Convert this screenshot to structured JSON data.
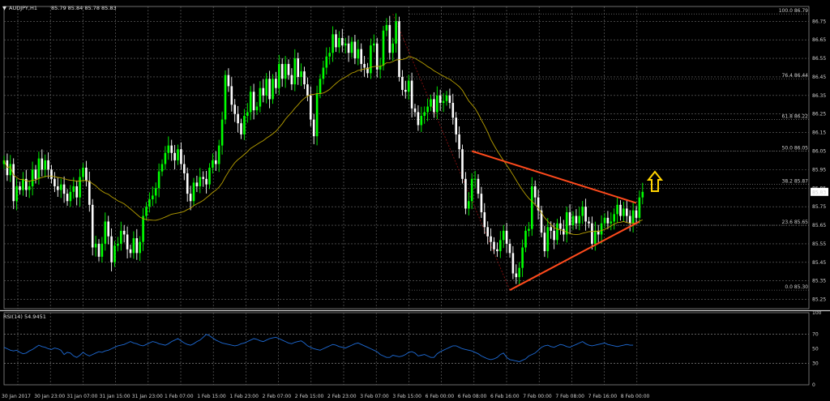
{
  "header": {
    "symbol_title": "AUDJPY,H1",
    "ohlc": "85.79 85.84 85.78 85.83",
    "rsi_title": "RSI(14) 54.9451"
  },
  "colors": {
    "background": "#000000",
    "grid": "#6e6e6e",
    "bull": "#00ff00",
    "bear": "#ffffff",
    "ma": "#b8a000",
    "trendline": "#ff4a1c",
    "fib": "#8a1010",
    "rsi": "#1e6bd6",
    "arrow": "#ffd400"
  },
  "chart_data": {
    "type": "candlestick",
    "symbol": "AUDJPY",
    "timeframe": "H1",
    "last_price": "85.83",
    "price_axis_ticks": [
      "86.75",
      "86.65",
      "86.55",
      "86.45",
      "86.35",
      "86.25",
      "86.15",
      "86.05",
      "85.95",
      "85.85",
      "85.75",
      "85.65",
      "85.55",
      "85.45",
      "85.35",
      "85.25"
    ],
    "ylim": [
      85.2,
      86.83
    ],
    "time_labels": [
      "30 Jan 2017",
      "30 Jan 23:00",
      "31 Jan 07:00",
      "31 Jan 15:00",
      "31 Jan 23:00",
      "1 Feb 07:00",
      "1 Feb 15:00",
      "1 Feb 23:00",
      "2 Feb 07:00",
      "2 Feb 15:00",
      "2 Feb 23:00",
      "3 Feb 07:00",
      "3 Feb 15:00",
      "6 Feb 00:00",
      "6 Feb 08:00",
      "6 Feb 16:00",
      "7 Feb 00:00",
      "7 Feb 08:00",
      "7 Feb 16:00",
      "8 Feb 00:00"
    ],
    "fibonacci": {
      "levels": [
        {
          "label": "100.0 86.79",
          "price": 86.79
        },
        {
          "label": "76.4 86.44",
          "price": 86.44
        },
        {
          "label": "61.8 86.22",
          "price": 86.22
        },
        {
          "label": "50.0 86.05",
          "price": 86.05
        },
        {
          "label": "38.2 85.87",
          "price": 85.87
        },
        {
          "label": "23.6 85.65",
          "price": 85.65
        },
        {
          "label": "0.0 85.30",
          "price": 85.3
        }
      ]
    },
    "triangle": {
      "upper": [
        {
          "bar": 148,
          "price": 86.05
        },
        {
          "bar": 200,
          "price": 85.77
        }
      ],
      "lower": [
        {
          "bar": 160,
          "price": 85.3
        },
        {
          "bar": 201,
          "price": 85.67
        }
      ]
    },
    "closes": [
      86.0,
      85.92,
      85.98,
      85.78,
      85.86,
      85.84,
      85.9,
      85.84,
      85.86,
      85.95,
      85.9,
      86.01,
      85.95,
      86.0,
      85.95,
      85.9,
      85.86,
      85.84,
      85.87,
      85.82,
      85.78,
      85.83,
      85.86,
      85.8,
      85.91,
      85.96,
      85.89,
      85.76,
      85.53,
      85.55,
      85.48,
      85.55,
      85.67,
      85.59,
      85.45,
      85.54,
      85.55,
      85.62,
      85.6,
      85.52,
      85.5,
      85.58,
      85.5,
      85.56,
      85.7,
      85.75,
      85.79,
      85.81,
      85.85,
      85.94,
      85.98,
      86.04,
      86.08,
      86.04,
      86.0,
      86.06,
      85.98,
      85.93,
      85.82,
      85.78,
      85.88,
      85.86,
      85.91,
      85.9,
      85.87,
      85.96,
      86.0,
      85.98,
      86.08,
      86.22,
      86.46,
      86.4,
      86.3,
      86.25,
      86.2,
      86.14,
      86.24,
      86.26,
      86.37,
      86.27,
      86.29,
      86.39,
      86.35,
      86.44,
      86.33,
      86.44,
      86.39,
      86.52,
      86.44,
      86.52,
      86.46,
      86.41,
      86.55,
      86.45,
      86.48,
      86.41,
      86.35,
      86.22,
      86.13,
      86.36,
      86.44,
      86.5,
      86.56,
      86.58,
      86.68,
      86.61,
      86.66,
      86.62,
      86.63,
      86.58,
      86.64,
      86.55,
      86.6,
      86.52,
      86.5,
      86.47,
      86.62,
      86.63,
      86.49,
      86.51,
      86.7,
      86.73,
      86.58,
      86.63,
      86.75,
      86.45,
      86.38,
      86.37,
      86.43,
      86.28,
      86.26,
      86.19,
      86.24,
      86.26,
      86.29,
      86.33,
      86.26,
      86.35,
      86.31,
      86.32,
      86.35,
      86.31,
      86.23,
      86.14,
      86.06,
      85.9,
      85.74,
      85.78,
      85.9,
      85.9,
      85.82,
      85.72,
      85.64,
      85.59,
      85.56,
      85.52,
      85.51,
      85.57,
      85.62,
      85.55,
      85.5,
      85.39,
      85.37,
      85.42,
      85.53,
      85.62,
      85.63,
      85.86,
      85.8,
      85.73,
      85.61,
      85.51,
      85.64,
      85.62,
      85.57,
      85.66,
      85.63,
      85.6,
      85.72,
      85.65,
      85.7,
      85.66,
      85.7,
      85.75,
      85.67,
      85.66,
      85.55,
      85.62,
      85.6,
      85.66,
      85.69,
      85.66,
      85.67,
      85.71,
      85.76,
      85.7,
      85.74,
      85.7,
      85.66,
      85.73,
      85.69,
      85.8,
      85.83
    ],
    "rsi": {
      "name": "RSI(14)",
      "value": 54.9451,
      "ylim": [
        0,
        100
      ],
      "axis_ticks": [
        "100",
        "70",
        "50",
        "30",
        "0"
      ],
      "values": [
        52,
        50,
        48,
        47,
        48,
        45,
        43,
        44,
        47,
        49,
        52,
        55,
        53,
        52,
        50,
        49,
        51,
        50,
        48,
        42,
        45,
        44,
        40,
        38,
        41,
        45,
        42,
        40,
        42,
        44,
        46,
        45,
        47,
        48,
        50,
        52,
        54,
        55,
        56,
        58,
        60,
        58,
        57,
        55,
        54,
        56,
        58,
        60,
        59,
        57,
        56,
        55,
        57,
        60,
        62,
        64,
        61,
        58,
        56,
        55,
        57,
        60,
        62,
        66,
        70,
        68,
        65,
        62,
        60,
        58,
        57,
        56,
        55,
        54,
        55,
        57,
        58,
        60,
        62,
        64,
        63,
        61,
        60,
        62,
        64,
        65,
        66,
        64,
        62,
        60,
        58,
        57,
        59,
        60,
        61,
        58,
        54,
        52,
        50,
        49,
        48,
        50,
        52,
        54,
        56,
        55,
        53,
        52,
        51,
        53,
        55,
        57,
        58,
        56,
        54,
        52,
        50,
        48,
        46,
        42,
        40,
        38,
        38,
        41,
        40,
        39,
        40,
        42,
        45,
        46,
        44,
        40,
        41,
        42,
        40,
        38,
        38,
        43,
        46,
        48,
        50,
        52,
        54,
        54,
        52,
        50,
        49,
        48,
        47,
        45,
        43,
        40,
        38,
        36,
        35,
        36,
        38,
        42,
        44,
        38,
        35,
        34,
        33,
        32,
        34,
        36,
        40,
        42,
        44,
        48,
        52,
        54,
        55,
        53,
        52,
        54,
        56,
        55,
        53,
        52,
        54,
        56,
        58,
        60,
        57,
        55,
        54,
        55,
        56,
        57,
        58,
        56,
        55,
        54,
        53,
        54,
        55,
        56,
        55,
        55
      ]
    },
    "moving_average": "smoothed price overlay",
    "signal": "breakout arrow up"
  }
}
